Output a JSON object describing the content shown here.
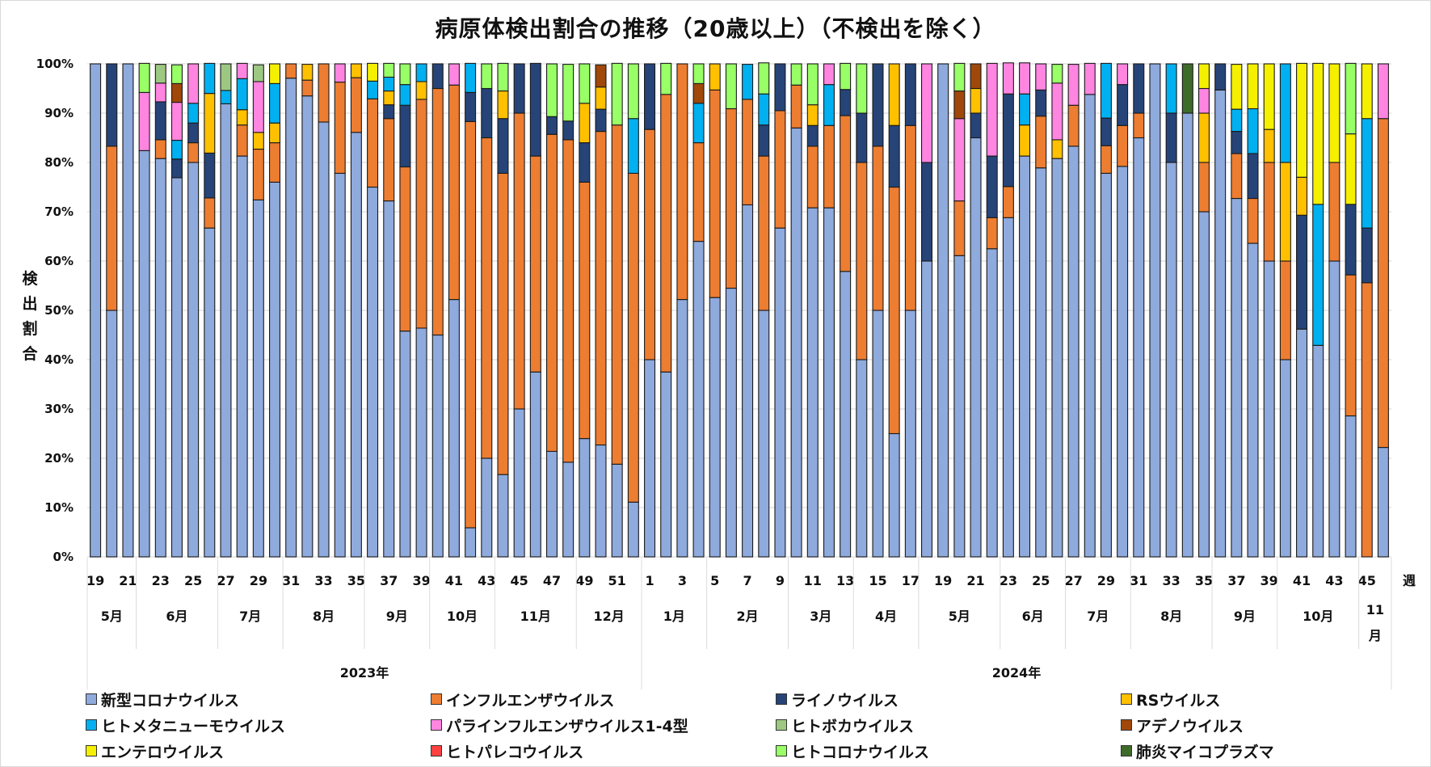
{
  "chart_data": {
    "type": "bar",
    "stacked": true,
    "title": "病原体検出割合の推移（20歳以上）（不検出を除く）",
    "ylabel": "検出割合",
    "xlabel": "週",
    "ylim": [
      0,
      100
    ],
    "yticks": [
      "0%",
      "10%",
      "20%",
      "30%",
      "40%",
      "50%",
      "60%",
      "70%",
      "80%",
      "90%",
      "100%"
    ],
    "grid": true,
    "legend_position": "bottom",
    "series_names": [
      "新型コロナウイルス",
      "インフルエンザウイルス",
      "ライノウイルス",
      "RSウイルス",
      "ヒトメタニューモウイルス",
      "パラインフルエンザウイルス1-4型",
      "ヒトボカウイルス",
      "アデノウイルス",
      "エンテロウイルス",
      "ヒトパレコウイルス",
      "ヒトコロナウイルス",
      "肺炎マイコプラズマ"
    ],
    "series_colors": [
      "#8faadc",
      "#ed7d31",
      "#264478",
      "#ffc000",
      "#00b0f0",
      "#ff85e0",
      "#9dc882",
      "#a0480a",
      "#f5f000",
      "#ff4040",
      "#99ff66",
      "#3d6b2a"
    ],
    "legend_order": [
      0,
      1,
      2,
      3,
      4,
      5,
      6,
      7,
      8,
      9,
      10,
      11
    ],
    "years": [
      {
        "label": "2023年",
        "months": [
          {
            "label": "5月",
            "weeks": 3
          },
          {
            "label": "6月",
            "weeks": 5
          },
          {
            "label": "7月",
            "weeks": 4
          },
          {
            "label": "8月",
            "weeks": 5
          },
          {
            "label": "9月",
            "weeks": 4
          },
          {
            "label": "10月",
            "weeks": 4
          },
          {
            "label": "11月",
            "weeks": 5
          },
          {
            "label": "12月",
            "weeks": 4
          }
        ]
      },
      {
        "label": "2024年",
        "months": [
          {
            "label": "1月",
            "weeks": 4
          },
          {
            "label": "2月",
            "weeks": 5
          },
          {
            "label": "3月",
            "weeks": 4
          },
          {
            "label": "4月",
            "weeks": 4
          },
          {
            "label": "5月",
            "weeks": 5
          },
          {
            "label": "6月",
            "weeks": 4
          },
          {
            "label": "7月",
            "weeks": 4
          },
          {
            "label": "8月",
            "weeks": 5
          },
          {
            "label": "9月",
            "weeks": 4
          },
          {
            "label": "10月",
            "weeks": 5
          },
          {
            "label": "11月",
            "weeks": 2
          }
        ]
      }
    ],
    "weeks": [
      19,
      20,
      21,
      22,
      23,
      24,
      25,
      26,
      27,
      28,
      29,
      30,
      31,
      32,
      33,
      34,
      35,
      36,
      37,
      38,
      39,
      40,
      41,
      42,
      43,
      44,
      45,
      46,
      47,
      48,
      49,
      50,
      51,
      52,
      1,
      2,
      3,
      4,
      5,
      6,
      7,
      8,
      9,
      10,
      11,
      12,
      13,
      14,
      15,
      16,
      17,
      18,
      19,
      20,
      21,
      22,
      23,
      24,
      25,
      26,
      27,
      28,
      29,
      30,
      31,
      32,
      33,
      34,
      35,
      36,
      37,
      38,
      39,
      40,
      41,
      42,
      43,
      44,
      45,
      46
    ],
    "bars": [
      [
        100,
        0,
        0,
        0,
        0,
        0,
        0,
        0,
        0,
        0,
        0,
        0
      ],
      [
        50,
        33.3,
        16.7,
        0,
        0,
        0,
        0,
        0,
        0,
        0,
        0,
        0
      ],
      [
        100,
        0,
        0,
        0,
        0,
        0,
        0,
        0,
        0,
        0,
        0,
        0
      ],
      [
        82.4,
        0,
        0,
        0,
        0,
        11.8,
        0,
        0,
        0,
        0,
        5.9,
        0
      ],
      [
        80.8,
        3.8,
        7.7,
        0,
        0,
        3.8,
        3.8,
        0,
        0,
        0,
        0,
        0
      ],
      [
        76.9,
        0,
        3.8,
        0,
        3.8,
        7.7,
        0,
        3.8,
        0,
        0,
        3.8,
        0
      ],
      [
        80,
        4,
        4,
        0,
        4,
        8,
        0,
        0,
        0,
        0,
        0,
        0
      ],
      [
        66.7,
        6.1,
        9.1,
        12.1,
        6.1,
        0,
        0,
        0,
        0,
        0,
        0,
        0
      ],
      [
        91.9,
        0,
        0,
        0,
        2.7,
        0,
        5.4,
        0,
        0,
        0,
        0,
        0
      ],
      [
        81.3,
        6.3,
        0,
        3.1,
        6.3,
        3.1,
        0,
        0,
        0,
        0,
        0,
        0
      ],
      [
        72.4,
        10.3,
        0,
        3.4,
        0,
        10.3,
        3.4,
        0,
        0,
        0,
        0,
        0
      ],
      [
        76,
        8,
        0,
        4,
        8,
        0,
        0,
        0,
        4,
        0,
        0,
        0
      ],
      [
        97.1,
        2.9,
        0,
        0,
        0,
        0,
        0,
        0,
        0,
        0,
        0,
        0
      ],
      [
        93.5,
        3.2,
        0,
        3.2,
        0,
        0,
        0,
        0,
        0,
        0,
        0,
        0
      ],
      [
        88.2,
        11.8,
        0,
        0,
        0,
        0,
        0,
        0,
        0,
        0,
        0,
        0
      ],
      [
        77.8,
        18.5,
        0,
        0,
        0,
        3.7,
        0,
        0,
        0,
        0,
        0,
        0
      ],
      [
        86.1,
        11.1,
        0,
        2.8,
        0,
        0,
        0,
        0,
        0,
        0,
        0,
        0
      ],
      [
        75,
        17.9,
        0,
        0,
        3.6,
        0,
        0,
        0,
        3.6,
        0,
        0,
        0
      ],
      [
        72.2,
        16.7,
        2.8,
        2.8,
        2.8,
        0,
        0,
        0,
        0,
        0,
        2.8,
        0
      ],
      [
        45.8,
        33.3,
        12.5,
        0,
        4.2,
        0,
        0,
        0,
        0,
        0,
        4.2,
        0
      ],
      [
        46.4,
        46.4,
        0,
        3.6,
        3.6,
        0,
        0,
        0,
        0,
        0,
        0,
        0
      ],
      [
        45,
        50,
        5,
        0,
        0,
        0,
        0,
        0,
        0,
        0,
        0,
        0
      ],
      [
        52.2,
        43.5,
        0,
        0,
        0,
        4.3,
        0,
        0,
        0,
        0,
        0,
        0
      ],
      [
        5.9,
        82.4,
        5.9,
        0,
        5.9,
        0,
        0,
        0,
        0,
        0,
        0,
        0
      ],
      [
        20,
        65,
        10,
        0,
        0,
        0,
        0,
        0,
        0,
        0,
        5,
        0
      ],
      [
        16.7,
        61.1,
        11.1,
        5.6,
        0,
        0,
        0,
        0,
        0,
        0,
        5.6,
        0
      ],
      [
        30,
        60,
        10,
        0,
        0,
        0,
        0,
        0,
        0,
        0,
        0,
        0
      ],
      [
        37.5,
        43.8,
        18.8,
        0,
        0,
        0,
        0,
        0,
        0,
        0,
        0,
        0
      ],
      [
        21.4,
        64.3,
        3.6,
        0,
        0,
        0,
        0,
        0,
        0,
        0,
        10.7,
        0
      ],
      [
        19.2,
        65.4,
        3.8,
        0,
        0,
        0,
        0,
        0,
        0,
        0,
        11.5,
        0
      ],
      [
        24,
        52,
        8,
        8,
        0,
        0,
        0,
        0,
        0,
        0,
        8,
        0
      ],
      [
        22.7,
        63.6,
        4.5,
        4.5,
        0,
        0,
        0,
        4.5,
        0,
        0,
        0,
        0
      ],
      [
        18.8,
        68.8,
        0,
        0,
        0,
        0,
        0,
        0,
        0,
        0,
        12.5,
        0
      ],
      [
        11.1,
        66.7,
        0,
        0,
        11.1,
        0,
        0,
        0,
        0,
        0,
        11.1,
        0
      ],
      [
        40,
        46.7,
        13.3,
        0,
        0,
        0,
        0,
        0,
        0,
        0,
        0,
        0
      ],
      [
        37.5,
        56.3,
        0,
        0,
        0,
        0,
        0,
        0,
        0,
        0,
        6.3,
        0
      ],
      [
        52.2,
        47.8,
        0,
        0,
        0,
        0,
        0,
        0,
        0,
        0,
        0,
        0
      ],
      [
        64,
        20,
        0,
        0,
        8,
        0,
        0,
        4,
        0,
        0,
        4,
        0
      ],
      [
        52.6,
        42.1,
        0,
        5.3,
        0,
        0,
        0,
        0,
        0,
        0,
        0,
        0
      ],
      [
        54.5,
        36.4,
        0,
        0,
        0,
        0,
        0,
        0,
        0,
        0,
        9.1,
        0
      ],
      [
        71.4,
        21.4,
        0,
        0,
        7.1,
        0,
        0,
        0,
        0,
        0,
        0,
        0
      ],
      [
        50,
        31.3,
        6.3,
        0,
        6.3,
        0,
        0,
        0,
        0,
        0,
        6.3,
        0
      ],
      [
        66.7,
        23.8,
        9.5,
        0,
        0,
        0,
        0,
        0,
        0,
        0,
        0,
        0
      ],
      [
        87,
        8.7,
        0,
        0,
        0,
        0,
        0,
        0,
        0,
        0,
        4.3,
        0
      ],
      [
        70.8,
        12.5,
        4.2,
        4.2,
        0,
        0,
        0,
        0,
        0,
        0,
        8.3,
        0
      ],
      [
        70.8,
        16.7,
        0,
        0,
        8.3,
        4.2,
        0,
        0,
        0,
        0,
        0,
        0
      ],
      [
        57.9,
        31.6,
        5.3,
        0,
        0,
        0,
        0,
        0,
        0,
        0,
        5.3,
        0
      ],
      [
        40,
        40,
        10,
        0,
        0,
        0,
        0,
        0,
        0,
        0,
        10,
        0
      ],
      [
        50,
        33.3,
        16.7,
        0,
        0,
        0,
        0,
        0,
        0,
        0,
        0,
        0
      ],
      [
        25,
        50,
        12.5,
        12.5,
        0,
        0,
        0,
        0,
        0,
        0,
        0,
        0
      ],
      [
        50,
        37.5,
        12.5,
        0,
        0,
        0,
        0,
        0,
        0,
        0,
        0,
        0
      ],
      [
        60,
        0,
        20,
        0,
        0,
        20,
        0,
        0,
        0,
        0,
        0,
        0
      ],
      [
        100,
        0,
        0,
        0,
        0,
        0,
        0,
        0,
        0,
        0,
        0,
        0
      ],
      [
        61.1,
        11.1,
        0,
        0,
        0,
        16.7,
        0,
        5.6,
        0,
        0,
        5.6,
        0
      ],
      [
        85,
        0,
        5,
        5,
        0,
        0,
        0,
        5,
        0,
        0,
        0,
        0
      ],
      [
        62.5,
        6.3,
        12.5,
        0,
        0,
        18.8,
        0,
        0,
        0,
        0,
        0,
        0
      ],
      [
        68.8,
        6.3,
        18.8,
        0,
        0,
        6.3,
        0,
        0,
        0,
        0,
        0,
        0
      ],
      [
        81.3,
        0,
        0,
        6.3,
        6.3,
        6.3,
        0,
        0,
        0,
        0,
        0,
        0
      ],
      [
        78.9,
        10.5,
        5.3,
        0,
        0,
        5.3,
        0,
        0,
        0,
        0,
        0,
        0
      ],
      [
        80.8,
        0,
        0,
        3.8,
        0,
        11.5,
        0,
        0,
        0,
        0,
        3.8,
        0
      ],
      [
        83.3,
        8.3,
        0,
        0,
        0,
        8.3,
        0,
        0,
        0,
        0,
        0,
        0
      ],
      [
        93.8,
        0,
        0,
        0,
        0,
        6.3,
        0,
        0,
        0,
        0,
        0,
        0
      ],
      [
        77.8,
        5.6,
        5.6,
        0,
        11.1,
        0,
        0,
        0,
        0,
        0,
        0,
        0
      ],
      [
        79.2,
        8.3,
        8.3,
        0,
        0,
        4.2,
        0,
        0,
        0,
        0,
        0,
        0
      ],
      [
        85,
        5,
        10,
        0,
        0,
        0,
        0,
        0,
        0,
        0,
        0,
        0
      ],
      [
        100,
        0,
        0,
        0,
        0,
        0,
        0,
        0,
        0,
        0,
        0,
        0
      ],
      [
        80,
        0,
        10,
        0,
        10,
        0,
        0,
        0,
        0,
        0,
        0,
        0
      ],
      [
        90,
        0,
        0,
        0,
        0,
        0,
        0,
        0,
        0,
        0,
        0,
        10
      ],
      [
        70,
        10,
        0,
        10,
        0,
        5,
        0,
        0,
        5,
        0,
        0,
        0
      ],
      [
        94.7,
        0,
        5.3,
        0,
        0,
        0,
        0,
        0,
        0,
        0,
        0,
        0
      ],
      [
        72.7,
        9.1,
        4.5,
        0,
        4.5,
        0,
        0,
        0,
        9.1,
        0,
        0,
        0
      ],
      [
        63.6,
        9.1,
        9.1,
        0,
        9.1,
        0,
        0,
        0,
        9.1,
        0,
        0,
        0
      ],
      [
        60,
        20,
        0,
        6.7,
        0,
        0,
        0,
        0,
        13.3,
        0,
        0,
        0
      ],
      [
        40,
        20,
        0,
        20,
        20,
        0,
        0,
        0,
        0,
        0,
        0,
        0
      ],
      [
        46.2,
        0,
        23.1,
        7.7,
        0,
        0,
        0,
        0,
        23.1,
        0,
        0,
        0
      ],
      [
        42.9,
        0,
        0,
        0,
        28.6,
        0,
        0,
        0,
        28.6,
        0,
        0,
        0
      ],
      [
        60,
        20,
        0,
        0,
        0,
        0,
        0,
        0,
        20,
        0,
        0,
        0
      ],
      [
        28.6,
        28.6,
        14.3,
        0,
        0,
        0,
        0,
        0,
        14.3,
        0,
        14.3,
        0
      ],
      [
        0,
        55.6,
        11.1,
        0,
        22.2,
        0,
        0,
        0,
        11.1,
        0,
        0,
        0
      ],
      [
        22.2,
        66.7,
        0,
        0,
        0,
        11.1,
        0,
        0,
        0,
        0,
        0,
        0
      ]
    ]
  },
  "page": {
    "title": "病原体検出割合の推移（20歳以上）（不検出を除く）",
    "ylabel_chars": [
      "検",
      "出",
      "割",
      "合"
    ],
    "week_axis_label": "週"
  }
}
